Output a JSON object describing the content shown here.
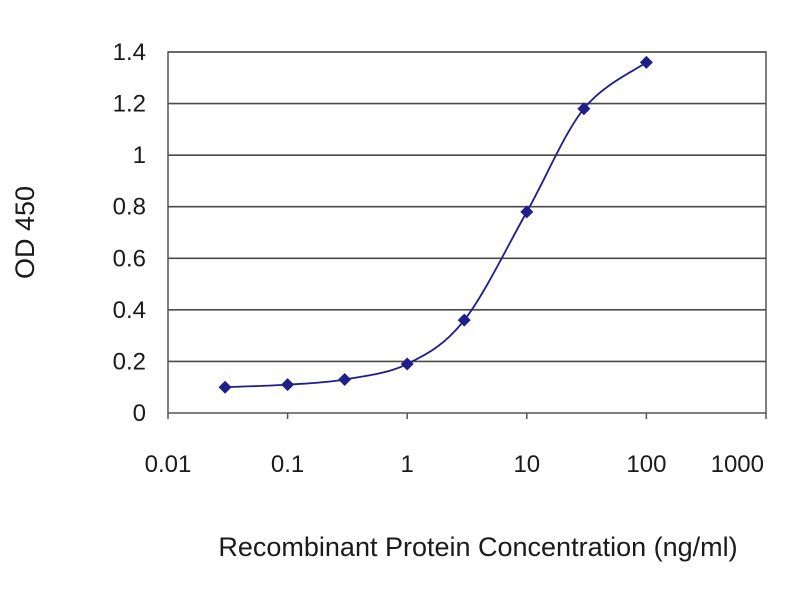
{
  "chart_data": {
    "type": "line",
    "title": "",
    "xlabel": "Recombinant Protein Concentration (ng/ml)",
    "ylabel": "OD 450",
    "x_scale": "log",
    "xlim": [
      0.01,
      1000
    ],
    "ylim": [
      0,
      1.4
    ],
    "x_ticks": [
      0.01,
      0.1,
      1,
      10,
      100,
      1000
    ],
    "x_tick_labels": [
      "0.01",
      "0.1",
      "1",
      "10",
      "100",
      "1000"
    ],
    "y_ticks": [
      0,
      0.2,
      0.4,
      0.6,
      0.8,
      1,
      1.2,
      1.4
    ],
    "y_tick_labels": [
      "0",
      "0.2",
      "0.4",
      "0.6",
      "0.8",
      "1",
      "1.2",
      "1.4"
    ],
    "grid": "horizontal",
    "legend": "none",
    "series": [
      {
        "x": [
          0.03,
          0.1,
          0.3,
          1,
          3,
          10,
          30,
          100
        ],
        "y": [
          0.1,
          0.11,
          0.13,
          0.19,
          0.36,
          0.78,
          1.18,
          1.36
        ],
        "color": "#1f1f8a",
        "marker": "diamond",
        "smooth": true
      }
    ]
  }
}
